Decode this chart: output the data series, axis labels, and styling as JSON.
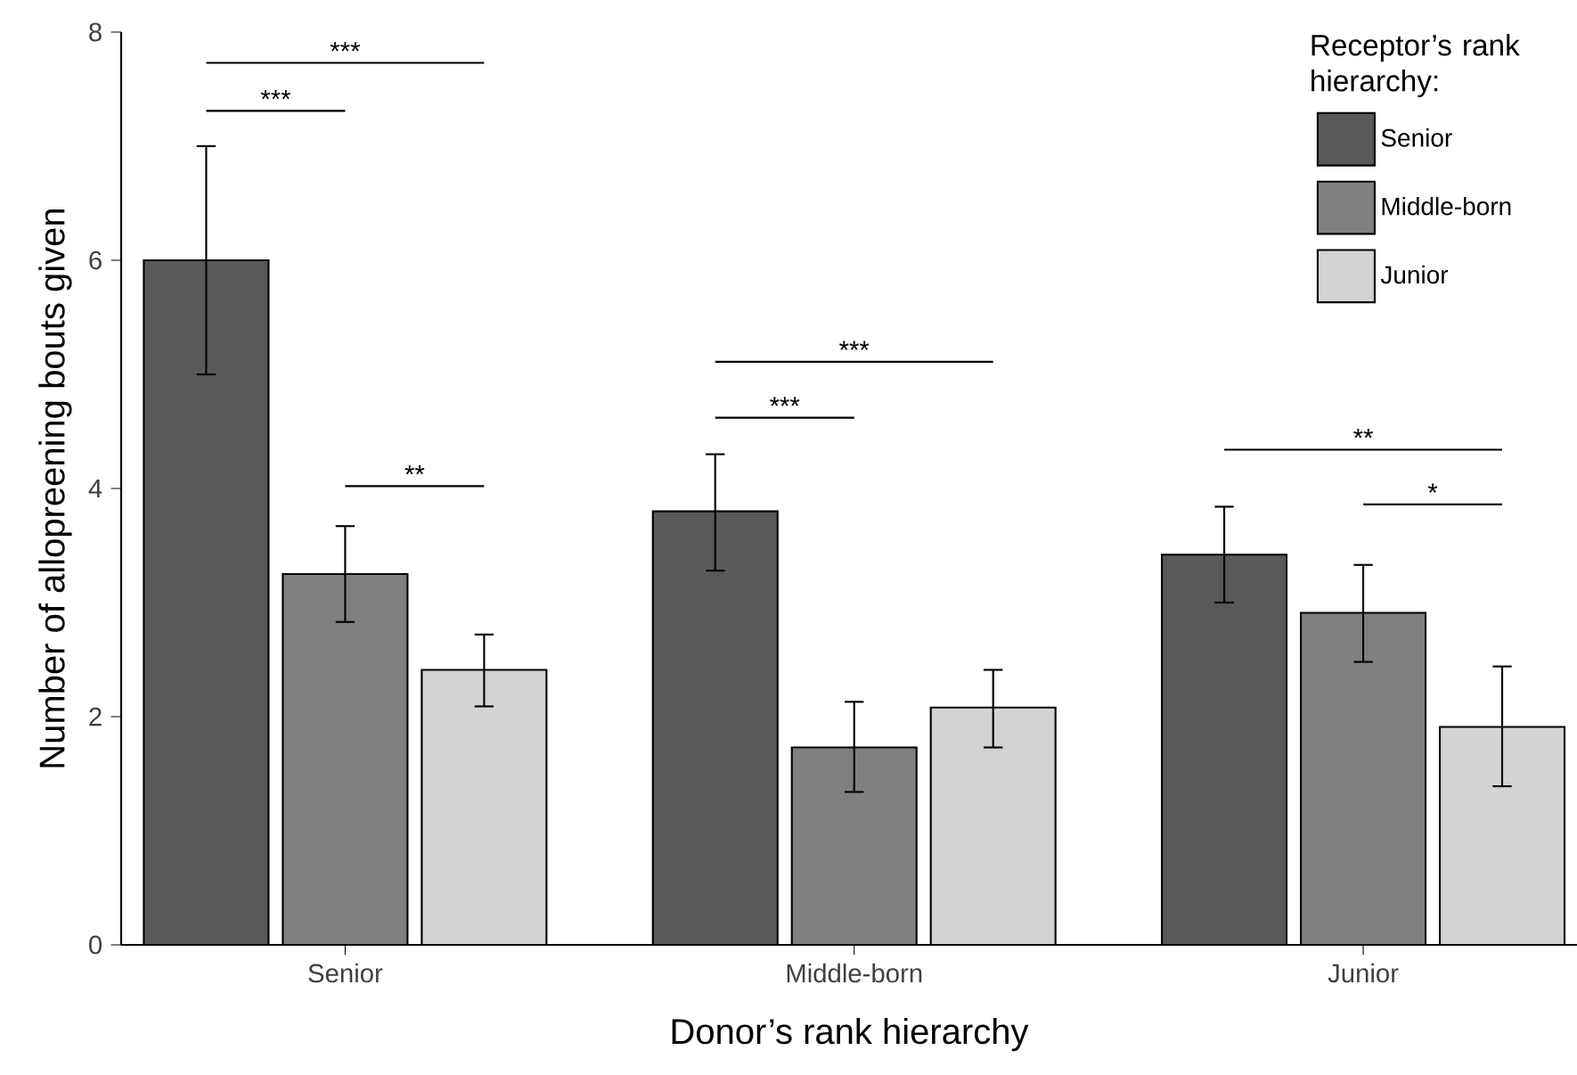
{
  "chart_data": {
    "type": "bar",
    "xlabel": "Donor’s rank hierarchy",
    "ylabel": "Number of allopreening bouts given",
    "legend_title": "Receptor’s rank hierarchy:",
    "legend": "top right",
    "categories": [
      "Senior",
      "Middle-born",
      "Junior"
    ],
    "ylim": [
      0,
      8
    ],
    "yticks": [
      0,
      2,
      4,
      6,
      8
    ],
    "series": [
      {
        "name": "Senior",
        "color": "#595959",
        "values": [
          6.0,
          3.8,
          3.42
        ],
        "errors": [
          [
            5.0,
            7.0
          ],
          [
            3.28,
            4.3
          ],
          [
            3.0,
            3.84
          ]
        ]
      },
      {
        "name": "Middle-born",
        "color": "#808080",
        "values": [
          3.25,
          1.73,
          2.91
        ],
        "errors": [
          [
            2.83,
            3.67
          ],
          [
            1.34,
            2.13
          ],
          [
            2.48,
            3.33
          ]
        ]
      },
      {
        "name": "Junior",
        "color": "#d3d3d3",
        "values": [
          2.41,
          2.08,
          1.91
        ],
        "errors": [
          [
            2.09,
            2.72
          ],
          [
            1.73,
            2.41
          ],
          [
            1.39,
            2.44
          ]
        ]
      }
    ],
    "annotations": [
      "***",
      "***",
      "**",
      "***",
      "***",
      "**",
      "*"
    ]
  }
}
